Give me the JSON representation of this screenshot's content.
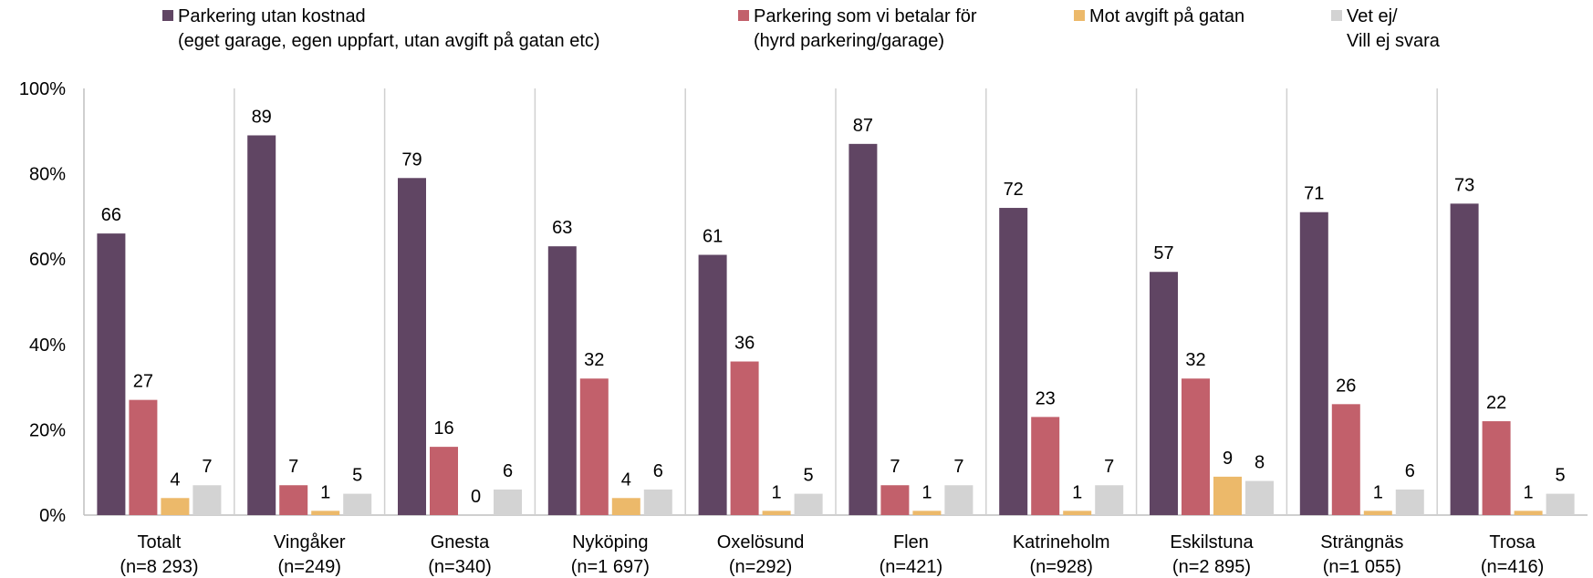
{
  "chart_data": {
    "type": "grouped_bar",
    "categories": [
      [
        "Totalt",
        "(n=8 293)"
      ],
      [
        "Vingåker",
        "(n=249)"
      ],
      [
        "Gnesta",
        "(n=340)"
      ],
      [
        "Nyköping",
        "(n=1 697)"
      ],
      [
        "Oxelösund",
        "(n=292)"
      ],
      [
        "Flen",
        "(n=421)"
      ],
      [
        "Katrineholm",
        "(n=928)"
      ],
      [
        "Eskilstuna",
        "(n=2 895)"
      ],
      [
        "Strängnäs",
        "(n=1 055)"
      ],
      [
        "Trosa",
        "(n=416)"
      ]
    ],
    "series": [
      {
        "name": [
          "Parkering utan kostnad",
          "(eget garage, egen uppfart, utan avgift på gatan etc)"
        ],
        "color": "#604563",
        "values": [
          66,
          89,
          79,
          63,
          61,
          87,
          72,
          57,
          71,
          73
        ]
      },
      {
        "name": [
          "Parkering som vi betalar för",
          "(hyrd parkering/garage)"
        ],
        "color": "#c2606b",
        "values": [
          27,
          7,
          16,
          32,
          36,
          7,
          23,
          32,
          26,
          22
        ]
      },
      {
        "name": [
          "Mot avgift på gatan"
        ],
        "color": "#ecb96a",
        "values": [
          4,
          1,
          0,
          4,
          1,
          1,
          1,
          9,
          1,
          1
        ]
      },
      {
        "name": [
          "Vet ej/",
          "Vill ej svara"
        ],
        "color": "#d3d3d3",
        "values": [
          7,
          5,
          6,
          6,
          5,
          7,
          7,
          8,
          6,
          5
        ]
      }
    ],
    "ylim": [
      0,
      100
    ],
    "yticks": [
      {
        "value": 0,
        "label": "0%"
      },
      {
        "value": 20,
        "label": "20%"
      },
      {
        "value": 40,
        "label": "40%"
      },
      {
        "value": 60,
        "label": "60%"
      },
      {
        "value": 80,
        "label": "80%"
      },
      {
        "value": 100,
        "label": "100%"
      }
    ],
    "grid": false
  }
}
